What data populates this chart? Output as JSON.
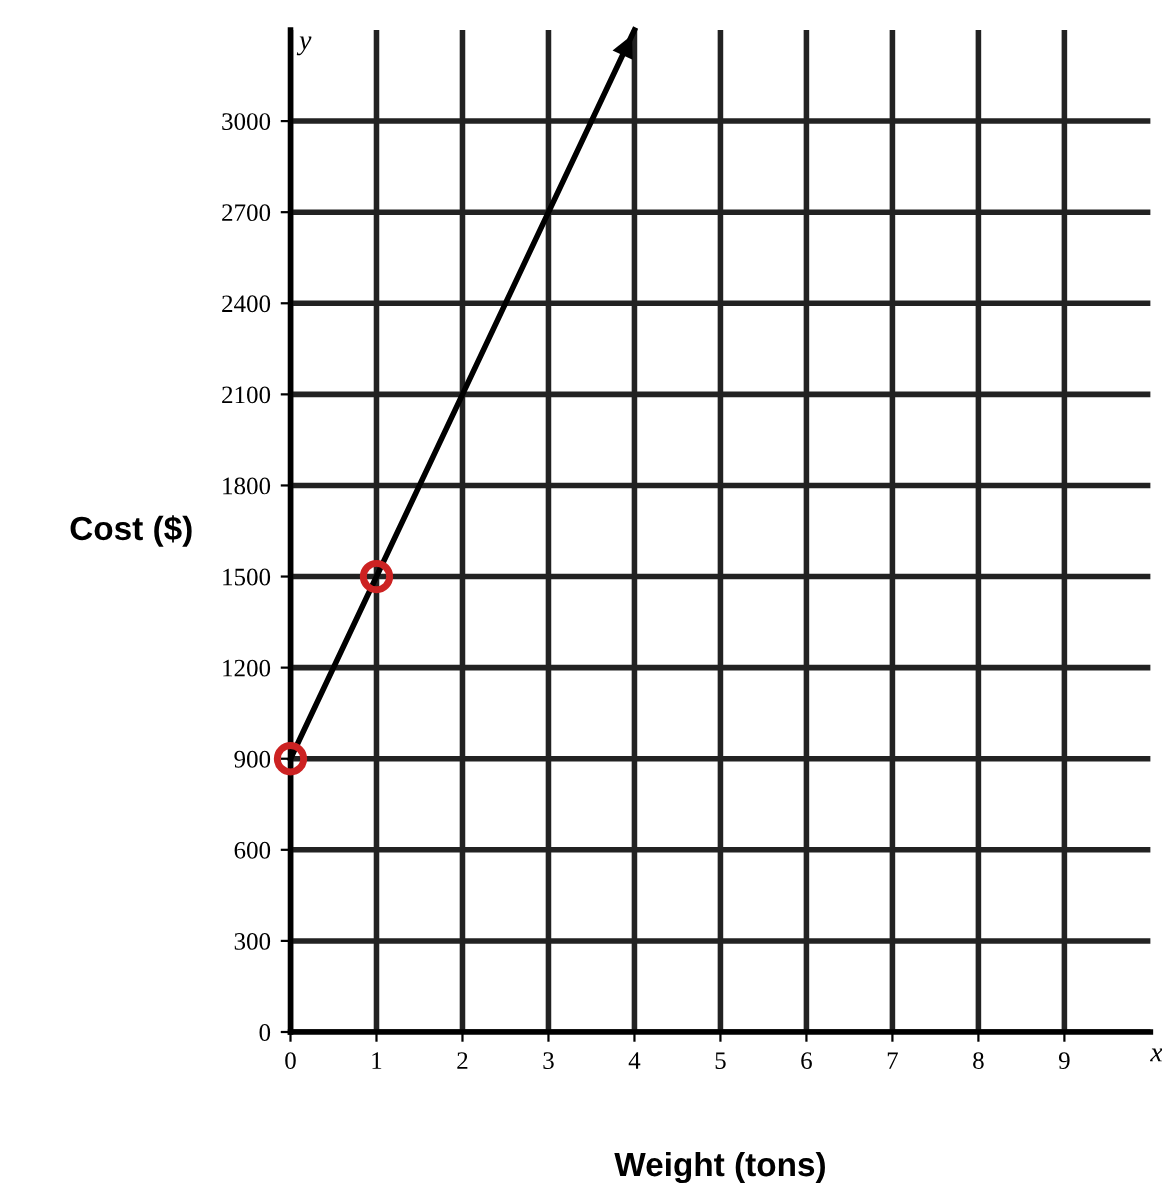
{
  "chart_data": {
    "type": "line",
    "xlabel": "Weight (tons)",
    "ylabel": "Cost ($)",
    "annotations": [
      "x",
      "y"
    ],
    "series": [
      {
        "color": "#000000",
        "x": [
          0,
          1,
          4
        ],
        "values": [
          900,
          1500,
          3300
        ],
        "marker": "none"
      },
      {
        "type": "scatter",
        "color": "#cc2222",
        "x": [
          0,
          1
        ],
        "values": [
          900,
          1500
        ],
        "marker": "circle"
      }
    ],
    "xlim": [
      0,
      10
    ],
    "ylim": [
      0,
      3300
    ],
    "xticks": [
      0,
      1,
      2,
      3,
      4,
      5,
      6,
      7,
      8,
      9
    ],
    "yticks": [
      0,
      300,
      600,
      900,
      1200,
      1500,
      1800,
      2100,
      2400,
      2700,
      3000
    ],
    "grid": true,
    "legend": false
  }
}
